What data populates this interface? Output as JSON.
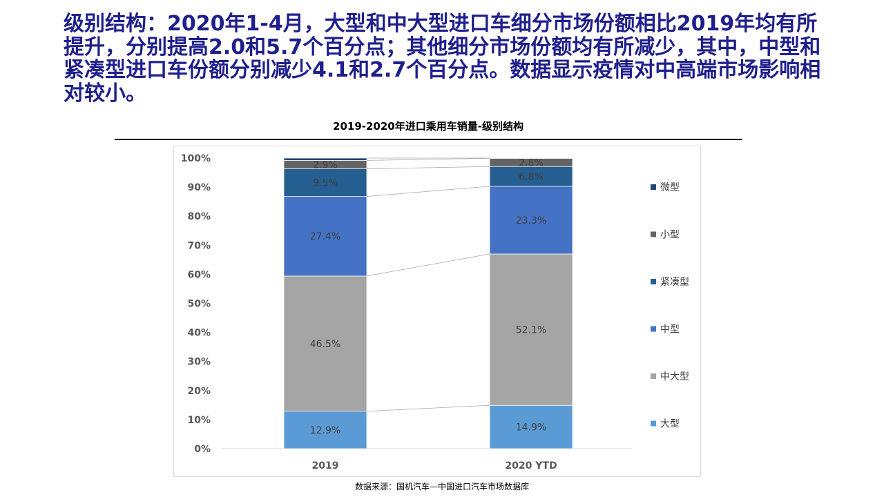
{
  "headline": "级别结构：2020年1-4月，大型和中大型进口车细分市场份额相比2019年均有所提升，分别提高2.0和5.7个百分点；其他细分市场份额均有所减少，其中，中型和紧凑型进口车份额分别减少4.1和2.7个百分点。数据显示疫情对中高端市场影响相对较小。",
  "source_note": "数据来源：国机汽车—中国进口汽车市场数据库",
  "chart_data": {
    "type": "bar",
    "stacked": true,
    "title": "2019-2020年进口乘用车销量-级别结构",
    "categories": [
      "2019",
      "2020 YTD"
    ],
    "ylim": [
      0,
      100
    ],
    "yticks": [
      "0%",
      "10%",
      "20%",
      "30%",
      "40%",
      "50%",
      "60%",
      "70%",
      "80%",
      "90%",
      "100%"
    ],
    "legend_position": "right",
    "series_connectors": true,
    "series": [
      {
        "name": "大型",
        "color": "#5B9BD5",
        "values": [
          12.9,
          14.9
        ],
        "labels": [
          "12.9%",
          "14.9%"
        ]
      },
      {
        "name": "中大型",
        "color": "#A5A5A5",
        "values": [
          46.5,
          52.1
        ],
        "labels": [
          "46.5%",
          "52.1%"
        ]
      },
      {
        "name": "中型",
        "color": "#4472C4",
        "values": [
          27.4,
          23.3
        ],
        "labels": [
          "27.4%",
          "23.3%"
        ]
      },
      {
        "name": "紧凑型",
        "color": "#255E91",
        "values": [
          9.5,
          6.8
        ],
        "labels": [
          "9.5%",
          "6.8%"
        ]
      },
      {
        "name": "小型",
        "color": "#636363",
        "values": [
          2.9,
          2.8
        ],
        "labels": [
          "2.9%",
          "2.8%"
        ]
      },
      {
        "name": "微型",
        "color": "#264478",
        "values": [
          0.8,
          0.1
        ],
        "labels": [
          "",
          ""
        ]
      }
    ]
  }
}
